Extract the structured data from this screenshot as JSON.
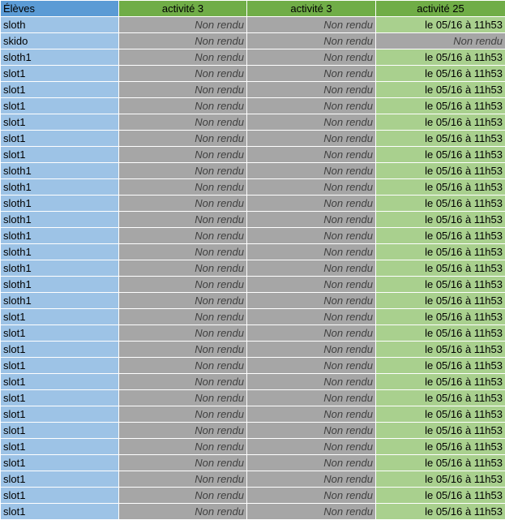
{
  "table": {
    "headers": [
      "Élèves",
      "activité 3",
      "activité 3",
      "activité 25"
    ],
    "colors": {
      "header_name": "#5b9bd5",
      "header_activity": "#70ad47",
      "name_cell": "#9dc3e6",
      "not_submitted": "#a6a6a6",
      "submitted": "#a9d08e"
    },
    "rows": [
      [
        "sloth",
        "Non rendu",
        "Non rendu",
        "le 05/16 à 11h53"
      ],
      [
        "skido",
        "Non rendu",
        "Non rendu",
        "Non rendu"
      ],
      [
        "sloth1",
        "Non rendu",
        "Non rendu",
        "le 05/16 à 11h53"
      ],
      [
        "slot1",
        "Non rendu",
        "Non rendu",
        "le 05/16 à 11h53"
      ],
      [
        "slot1",
        "Non rendu",
        "Non rendu",
        "le 05/16 à 11h53"
      ],
      [
        "slot1",
        "Non rendu",
        "Non rendu",
        "le 05/16 à 11h53"
      ],
      [
        "slot1",
        "Non rendu",
        "Non rendu",
        "le 05/16 à 11h53"
      ],
      [
        "slot1",
        "Non rendu",
        "Non rendu",
        "le 05/16 à 11h53"
      ],
      [
        "slot1",
        "Non rendu",
        "Non rendu",
        "le 05/16 à 11h53"
      ],
      [
        "sloth1",
        "Non rendu",
        "Non rendu",
        "le 05/16 à 11h53"
      ],
      [
        "sloth1",
        "Non rendu",
        "Non rendu",
        "le 05/16 à 11h53"
      ],
      [
        "sloth1",
        "Non rendu",
        "Non rendu",
        "le 05/16 à 11h53"
      ],
      [
        "sloth1",
        "Non rendu",
        "Non rendu",
        "le 05/16 à 11h53"
      ],
      [
        "sloth1",
        "Non rendu",
        "Non rendu",
        "le 05/16 à 11h53"
      ],
      [
        "sloth1",
        "Non rendu",
        "Non rendu",
        "le 05/16 à 11h53"
      ],
      [
        "sloth1",
        "Non rendu",
        "Non rendu",
        "le 05/16 à 11h53"
      ],
      [
        "sloth1",
        "Non rendu",
        "Non rendu",
        "le 05/16 à 11h53"
      ],
      [
        "sloth1",
        "Non rendu",
        "Non rendu",
        "le 05/16 à 11h53"
      ],
      [
        "slot1",
        "Non rendu",
        "Non rendu",
        "le 05/16 à 11h53"
      ],
      [
        "slot1",
        "Non rendu",
        "Non rendu",
        "le 05/16 à 11h53"
      ],
      [
        "slot1",
        "Non rendu",
        "Non rendu",
        "le 05/16 à 11h53"
      ],
      [
        "slot1",
        "Non rendu",
        "Non rendu",
        "le 05/16 à 11h53"
      ],
      [
        "slot1",
        "Non rendu",
        "Non rendu",
        "le 05/16 à 11h53"
      ],
      [
        "slot1",
        "Non rendu",
        "Non rendu",
        "le 05/16 à 11h53"
      ],
      [
        "slot1",
        "Non rendu",
        "Non rendu",
        "le 05/16 à 11h53"
      ],
      [
        "slot1",
        "Non rendu",
        "Non rendu",
        "le 05/16 à 11h53"
      ],
      [
        "slot1",
        "Non rendu",
        "Non rendu",
        "le 05/16 à 11h53"
      ],
      [
        "slot1",
        "Non rendu",
        "Non rendu",
        "le 05/16 à 11h53"
      ],
      [
        "slot1",
        "Non rendu",
        "Non rendu",
        "le 05/16 à 11h53"
      ],
      [
        "slot1",
        "Non rendu",
        "Non rendu",
        "le 05/16 à 11h53"
      ],
      [
        "slot1",
        "Non rendu",
        "Non rendu",
        "le 05/16 à 11h53"
      ]
    ]
  }
}
